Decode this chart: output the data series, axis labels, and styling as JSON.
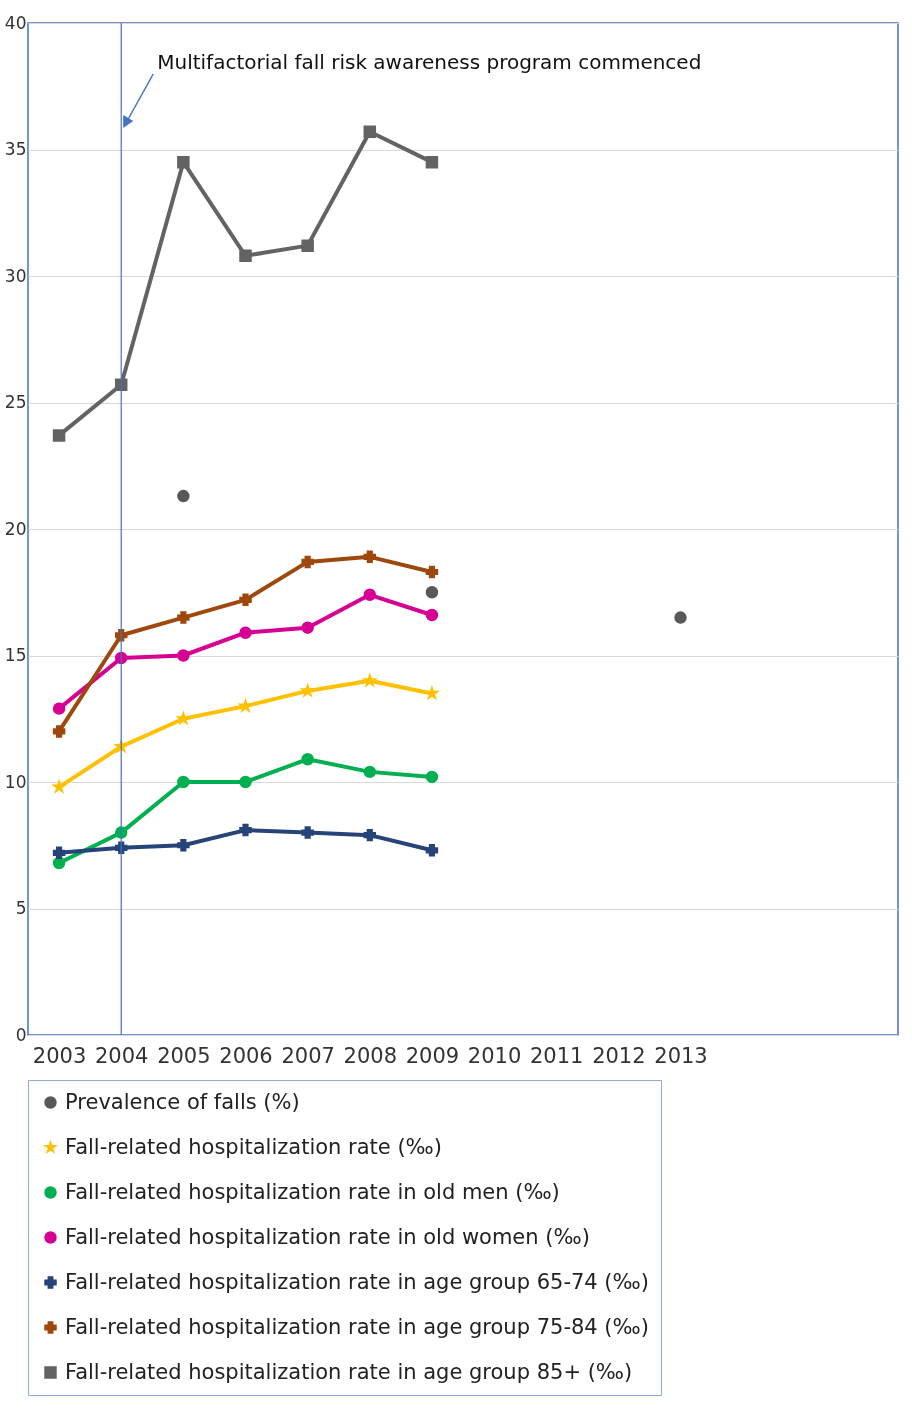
{
  "chart_data": {
    "type": "line",
    "categories": [
      "2003",
      "2004",
      "2005",
      "2006",
      "2007",
      "2008",
      "2009",
      "2010",
      "2011",
      "2012",
      "2013",
      null,
      null,
      null
    ],
    "ylim": [
      0,
      40
    ],
    "yticks": [
      0,
      5,
      10,
      15,
      20,
      25,
      30,
      35,
      40
    ],
    "grid": "y",
    "legend": "bottom",
    "ref_lines": [
      {
        "axis": "x",
        "value": "2004",
        "label": "Multifactorial fall risk awareness program commenced",
        "color": "#4472c4"
      }
    ],
    "series": [
      {
        "name": "Prevalence of falls (%)",
        "type": "scatter",
        "marker": "circle",
        "color": "#595959",
        "values": [
          null,
          null,
          21.3,
          null,
          null,
          null,
          17.5,
          null,
          null,
          null,
          16.5,
          null,
          null,
          null
        ]
      },
      {
        "name": "Fall-related hospitalization rate (‰)",
        "marker": "star",
        "color": "#ffc000",
        "values": [
          9.8,
          11.4,
          12.5,
          13.0,
          13.6,
          14.0,
          13.5,
          null,
          null,
          null,
          null,
          null,
          null,
          null
        ]
      },
      {
        "name": "Fall-related hospitalization rate in old men (‰)",
        "marker": "circle",
        "color": "#00b050",
        "values": [
          6.8,
          8.0,
          10.0,
          10.0,
          10.9,
          10.4,
          10.2,
          null,
          null,
          null,
          null,
          null,
          null,
          null
        ]
      },
      {
        "name": "Fall-related hospitalization rate in old women (‰)",
        "marker": "circle",
        "color": "#d60093",
        "values": [
          12.9,
          14.9,
          15.0,
          15.9,
          16.1,
          17.4,
          16.6,
          null,
          null,
          null,
          null,
          null,
          null,
          null
        ]
      },
      {
        "name": "Fall-related hospitalization rate in age group 65-74 (‰)",
        "marker": "cross",
        "color": "#264478",
        "values": [
          7.2,
          7.4,
          7.5,
          8.1,
          8.0,
          7.9,
          7.3,
          null,
          null,
          null,
          null,
          null,
          null,
          null
        ]
      },
      {
        "name": "Fall-related hospitalization rate in age group 75-84 (‰)",
        "marker": "cross",
        "color": "#9e480e",
        "values": [
          12.0,
          15.8,
          16.5,
          17.2,
          18.7,
          18.9,
          18.3,
          null,
          null,
          null,
          null,
          null,
          null,
          null
        ]
      },
      {
        "name": "Fall-related hospitalization rate in age group 85+ (‰)",
        "marker": "square",
        "color": "#636363",
        "values": [
          23.7,
          25.7,
          34.5,
          30.8,
          31.2,
          35.7,
          34.5,
          null,
          null,
          null,
          null,
          null,
          null,
          null
        ]
      }
    ]
  }
}
